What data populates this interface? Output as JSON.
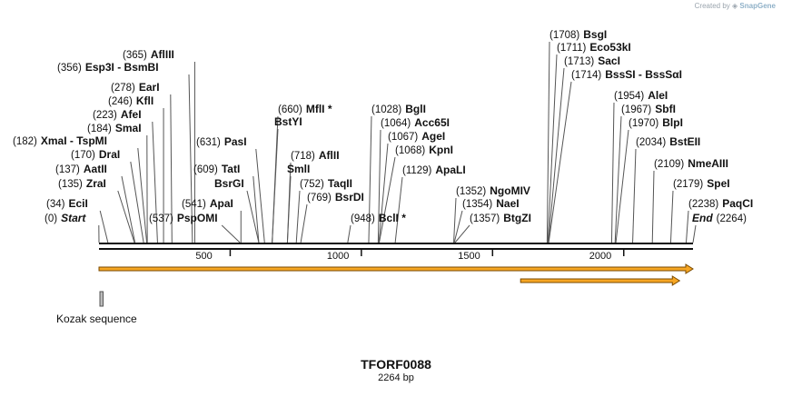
{
  "credit": {
    "text": "Created by",
    "brand": "SnapGene",
    "icon": "snapgene-logo-icon"
  },
  "plasmid": {
    "name": "TFORF0088",
    "length_label": "2264 bp",
    "length": 2264
  },
  "axis": {
    "ticks": [
      500,
      1000,
      1500,
      2000
    ]
  },
  "sites": [
    {
      "name": "Start",
      "pos": 0,
      "pos_label": "(0)",
      "special": true
    },
    {
      "name": "EciI",
      "pos": 34,
      "pos_label": "(34)"
    },
    {
      "name": "ZraI",
      "pos": 135,
      "pos_label": "(135)"
    },
    {
      "name": "AatII",
      "pos": 137,
      "pos_label": "(137)"
    },
    {
      "name": "DraI",
      "pos": 170,
      "pos_label": "(170)"
    },
    {
      "name": "XmaI  -  TspMI",
      "pos": 182,
      "pos_label": "(182)"
    },
    {
      "name": "SmaI",
      "pos": 184,
      "pos_label": "(184)"
    },
    {
      "name": "AfeI",
      "pos": 223,
      "pos_label": "(223)"
    },
    {
      "name": "KflI",
      "pos": 246,
      "pos_label": "(246)"
    },
    {
      "name": "EarI",
      "pos": 278,
      "pos_label": "(278)"
    },
    {
      "name": "Esp3I  -  BsmBI",
      "pos": 356,
      "pos_label": "(356)"
    },
    {
      "name": "AflIII",
      "pos": 365,
      "pos_label": "(365)"
    },
    {
      "name": "PspOMI",
      "pos": 537,
      "pos_label": "(537)"
    },
    {
      "name": "ApaI",
      "pos": 541,
      "pos_label": "(541)"
    },
    {
      "name": "BsrGI",
      "pos": 609,
      "pos_label": ""
    },
    {
      "name": "TatI",
      "pos": 609,
      "pos_label": "(609)"
    },
    {
      "name": "PasI",
      "pos": 631,
      "pos_label": "(631)"
    },
    {
      "name": "BstYI",
      "pos": 660,
      "pos_label": ""
    },
    {
      "name": "MflI *",
      "pos": 660,
      "pos_label": "(660)"
    },
    {
      "name": "SmlI",
      "pos": 718,
      "pos_label": ""
    },
    {
      "name": "AflII",
      "pos": 718,
      "pos_label": "(718)"
    },
    {
      "name": "TaqII",
      "pos": 752,
      "pos_label": "(752)"
    },
    {
      "name": "BsrDI",
      "pos": 769,
      "pos_label": "(769)"
    },
    {
      "name": "BclI *",
      "pos": 948,
      "pos_label": "(948)"
    },
    {
      "name": "BglI",
      "pos": 1028,
      "pos_label": "(1028)"
    },
    {
      "name": "Acc65I",
      "pos": 1064,
      "pos_label": "(1064)"
    },
    {
      "name": "AgeI",
      "pos": 1067,
      "pos_label": "(1067)"
    },
    {
      "name": "KpnI",
      "pos": 1068,
      "pos_label": "(1068)"
    },
    {
      "name": "ApaLI",
      "pos": 1129,
      "pos_label": "(1129)"
    },
    {
      "name": "NgoMIV",
      "pos": 1352,
      "pos_label": "(1352)"
    },
    {
      "name": "NaeI",
      "pos": 1354,
      "pos_label": "(1354)"
    },
    {
      "name": "BtgZI",
      "pos": 1357,
      "pos_label": "(1357)"
    },
    {
      "name": "BsgI",
      "pos": 1708,
      "pos_label": "(1708)"
    },
    {
      "name": "Eco53kI",
      "pos": 1711,
      "pos_label": "(1711)"
    },
    {
      "name": "SacI",
      "pos": 1713,
      "pos_label": "(1713)"
    },
    {
      "name": "BssSI  -  BssSαI",
      "pos": 1714,
      "pos_label": "(1714)"
    },
    {
      "name": "AleI",
      "pos": 1954,
      "pos_label": "(1954)"
    },
    {
      "name": "SbfI",
      "pos": 1967,
      "pos_label": "(1967)"
    },
    {
      "name": "BlpI",
      "pos": 1970,
      "pos_label": "(1970)"
    },
    {
      "name": "BstEII",
      "pos": 2034,
      "pos_label": "(2034)"
    },
    {
      "name": "NmeAIII",
      "pos": 2109,
      "pos_label": "(2109)"
    },
    {
      "name": "SpeI",
      "pos": 2179,
      "pos_label": "(2179)"
    },
    {
      "name": "PaqCI",
      "pos": 2238,
      "pos_label": "(2238)"
    },
    {
      "name": "End",
      "pos": 2264,
      "pos_label": "(2264)",
      "special": true
    }
  ],
  "features": [
    {
      "name": "ORF",
      "start": 1,
      "end": 2264,
      "direction": "forward",
      "color": "#f6a623"
    },
    {
      "name": "ORF",
      "start": 1608,
      "end": 2213,
      "direction": "forward",
      "color": "#f6a623"
    },
    {
      "name": "Kozak sequence",
      "start": 1,
      "end": 10,
      "color": "#bbbbbb",
      "label": "Kozak sequence"
    }
  ],
  "colors": {
    "line": "#111111",
    "feature_border": "#7a4a00",
    "leader": "#555555"
  }
}
